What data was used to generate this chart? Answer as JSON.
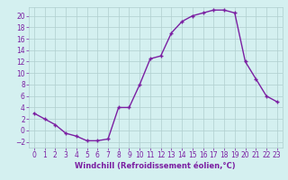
{
  "x": [
    0,
    1,
    2,
    3,
    4,
    5,
    6,
    7,
    8,
    9,
    10,
    11,
    12,
    13,
    14,
    15,
    16,
    17,
    18,
    19,
    20,
    21,
    22,
    23
  ],
  "y": [
    3,
    2,
    1,
    -0.5,
    -1,
    -1.8,
    -1.8,
    -1.5,
    4,
    4,
    8,
    12.5,
    13,
    17,
    19,
    20,
    20.5,
    21,
    21,
    20.5,
    12,
    9,
    6,
    5
  ],
  "line_color": "#7b1fa2",
  "marker": "+",
  "marker_size": 3.5,
  "marker_edge_width": 1.0,
  "bg_color": "#d4f0f0",
  "grid_color": "#b0cece",
  "xlabel": "Windchill (Refroidissement éolien,°C)",
  "xlabel_color": "#7b1fa2",
  "tick_color": "#7b1fa2",
  "ylim": [
    -3,
    21.5
  ],
  "xlim": [
    -0.5,
    23.5
  ],
  "yticks": [
    -2,
    0,
    2,
    4,
    6,
    8,
    10,
    12,
    14,
    16,
    18,
    20
  ],
  "xticks": [
    0,
    1,
    2,
    3,
    4,
    5,
    6,
    7,
    8,
    9,
    10,
    11,
    12,
    13,
    14,
    15,
    16,
    17,
    18,
    19,
    20,
    21,
    22,
    23
  ],
  "line_width": 1.0,
  "tick_fontsize": 5.5,
  "xlabel_fontsize": 6.0
}
